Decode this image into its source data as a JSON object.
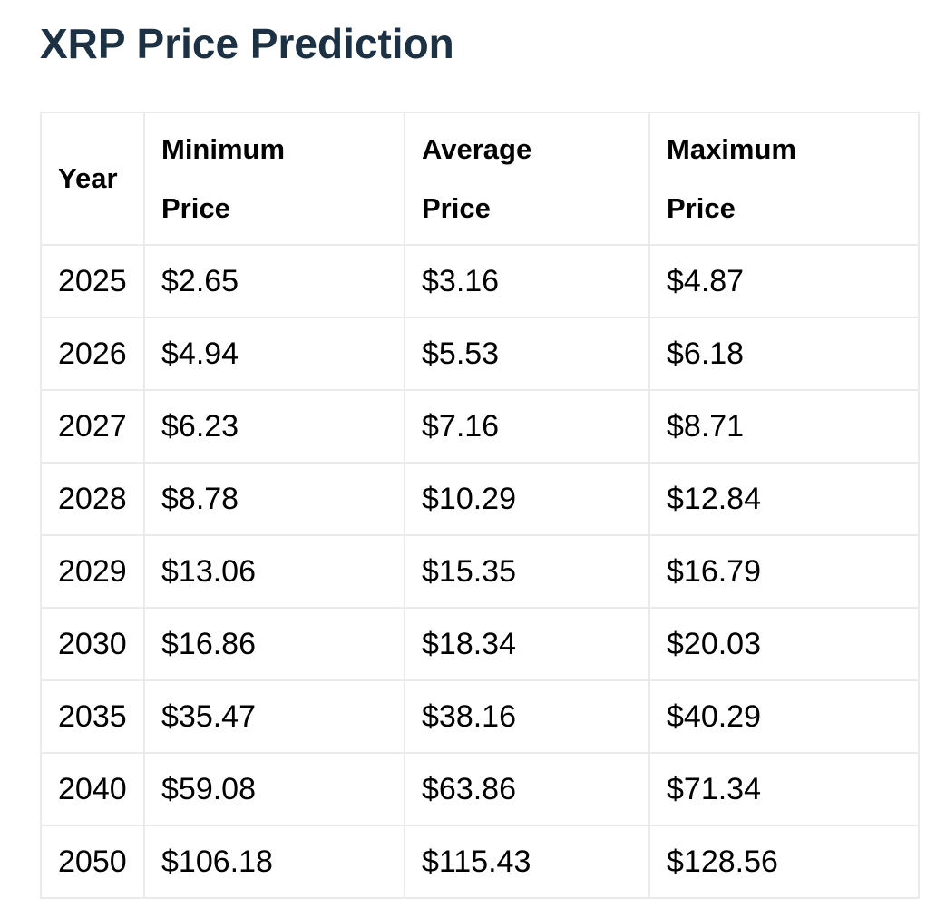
{
  "page": {
    "title": "XRP Price Prediction"
  },
  "theme": {
    "title_color": "#1c3144",
    "text_color": "#000000",
    "border_color": "#ebebeb",
    "background": "#ffffff"
  },
  "chart_data": {
    "type": "table",
    "title": "XRP Price Prediction",
    "columns": [
      "Year",
      "Minimum Price",
      "Average Price",
      "Maximum Price"
    ],
    "rows": [
      [
        "2025",
        "$2.65",
        "$3.16",
        "$4.87"
      ],
      [
        "2026",
        "$4.94",
        "$5.53",
        "$6.18"
      ],
      [
        "2027",
        "$6.23",
        "$7.16",
        "$8.71"
      ],
      [
        "2028",
        "$8.78",
        "$10.29",
        "$12.84"
      ],
      [
        "2029",
        "$13.06",
        "$15.35",
        "$16.79"
      ],
      [
        "2030",
        "$16.86",
        "$18.34",
        "$20.03"
      ],
      [
        "2035",
        "$35.47",
        "$38.16",
        "$40.29"
      ],
      [
        "2040",
        "$59.08",
        "$63.86",
        "$71.34"
      ],
      [
        "2050",
        "$106.18",
        "$115.43",
        "$128.56"
      ]
    ]
  },
  "table": {
    "header_lines": [
      [
        "Year"
      ],
      [
        "Minimum",
        "Price"
      ],
      [
        "Average",
        "Price"
      ],
      [
        "Maximum",
        "Price"
      ]
    ]
  }
}
